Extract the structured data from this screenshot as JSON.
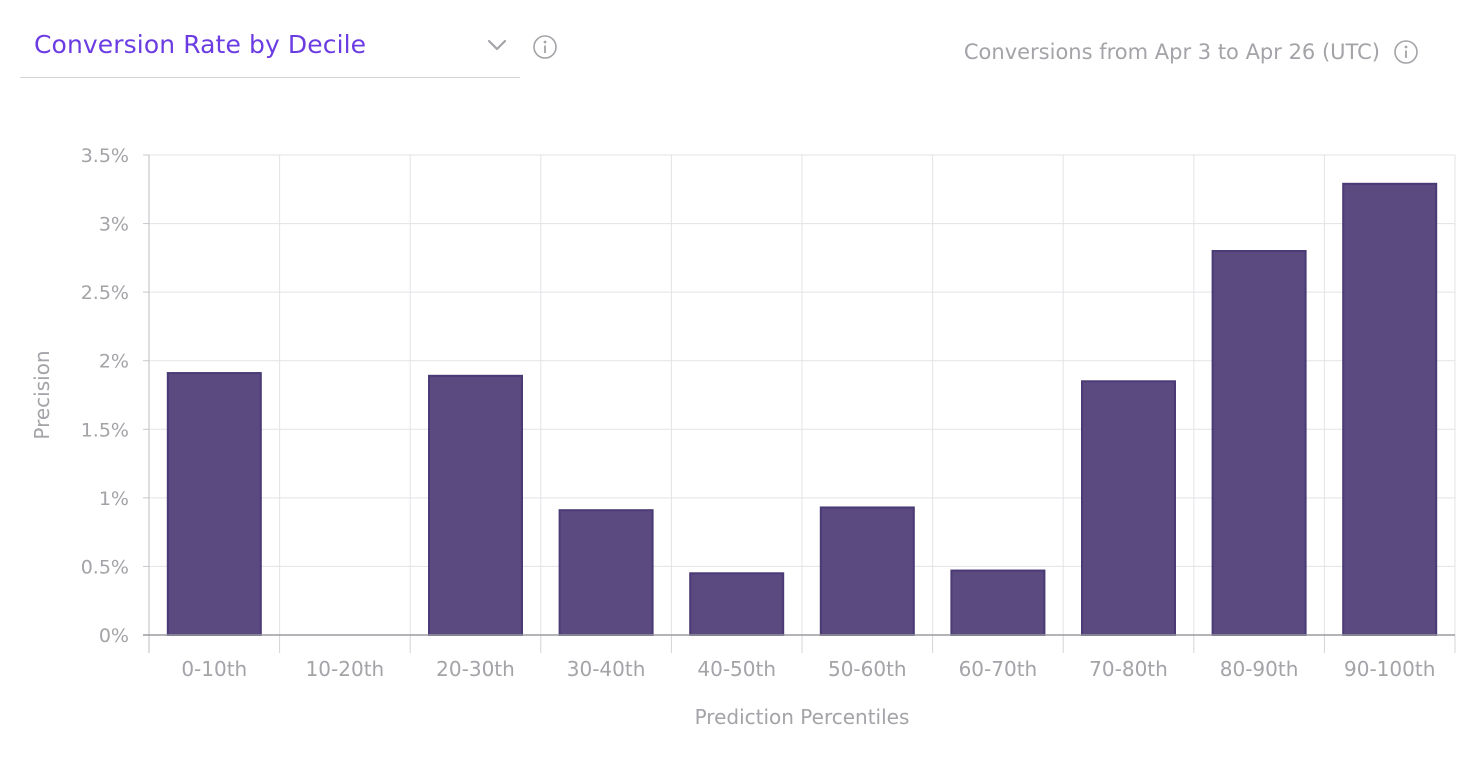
{
  "header": {
    "metric_select_label": "Conversion Rate by Decile",
    "date_range": "Conversions from Apr 3 to Apr 26 (UTC)",
    "icons": [
      "chevron-down-icon",
      "info-icon"
    ]
  },
  "colors": {
    "bar_fill": "#5b4a80",
    "bar_stroke": "#4a3a75",
    "accent": "#6c3ce3",
    "grid": "#e3e3e6",
    "text_muted": "#a3a3a8"
  },
  "chart_data": {
    "type": "bar",
    "categories": [
      "0-10th",
      "10-20th",
      "20-30th",
      "30-40th",
      "40-50th",
      "50-60th",
      "60-70th",
      "70-80th",
      "80-90th",
      "90-100th"
    ],
    "values": [
      1.91,
      0,
      1.89,
      0.91,
      0.45,
      0.93,
      0.47,
      1.85,
      2.8,
      3.29
    ],
    "value_unit": "%",
    "xlabel": "Prediction Percentiles",
    "ylabel": "Precision",
    "ylim": [
      0,
      3.5
    ],
    "yticks": [
      0,
      0.5,
      1,
      1.5,
      2,
      2.5,
      3,
      3.5
    ],
    "ytick_labels": [
      "0%",
      "0.5%",
      "1%",
      "1.5%",
      "2%",
      "2.5%",
      "3%",
      "3.5%"
    ],
    "grid": true,
    "legend": "none"
  }
}
